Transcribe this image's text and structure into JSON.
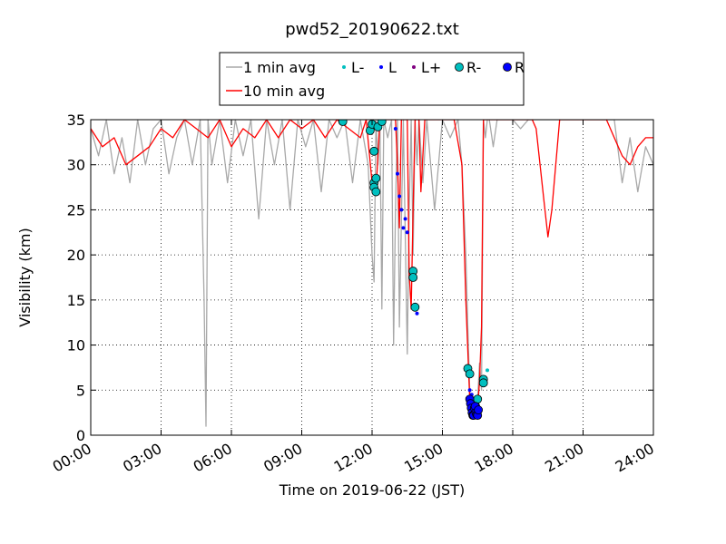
{
  "chart_data": {
    "type": "line",
    "title": "pwd52_20190622.txt",
    "xlabel": "Time on 2019-06-22 (JST)",
    "ylabel": "Visibility (km)",
    "xlim": [
      "00:00",
      "24:00"
    ],
    "ylim": [
      0,
      35
    ],
    "grid": true,
    "legend_placement": "top-center",
    "x_ticks": [
      "00:00",
      "03:00",
      "06:00",
      "09:00",
      "12:00",
      "15:00",
      "18:00",
      "21:00",
      "24:00"
    ],
    "y_ticks": [
      0,
      5,
      10,
      15,
      20,
      25,
      30,
      35
    ],
    "colors": {
      "one_min": "#a8a8a8",
      "ten_min": "#ff0000",
      "l_minus": "#00bfbf",
      "l": "#0000ff",
      "l_plus": "#800080",
      "r_minus": "#00bfbf",
      "r": "#0000ff"
    },
    "legend": [
      {
        "key": "one_min",
        "label": "1 min avg",
        "style": "line"
      },
      {
        "key": "ten_min",
        "label": "10 min avg",
        "style": "line"
      },
      {
        "key": "l_minus",
        "label": "L-",
        "style": "small-dot"
      },
      {
        "key": "l",
        "label": "L",
        "style": "small-dot"
      },
      {
        "key": "l_plus",
        "label": "L+",
        "style": "small-dot"
      },
      {
        "key": "r_minus",
        "label": "R-",
        "style": "big-dot"
      },
      {
        "key": "r",
        "label": "R",
        "style": "big-dot"
      }
    ],
    "series": [
      {
        "key": "one_min",
        "name": "1 min avg",
        "x": [
          "00:00",
          "00:20",
          "00:40",
          "01:00",
          "01:20",
          "01:40",
          "02:00",
          "02:20",
          "02:40",
          "03:00",
          "03:20",
          "03:40",
          "04:00",
          "04:20",
          "04:40",
          "04:50",
          "04:55",
          "05:00",
          "05:10",
          "05:30",
          "05:50",
          "06:10",
          "06:30",
          "06:50",
          "07:10",
          "07:30",
          "07:50",
          "08:10",
          "08:30",
          "08:50",
          "09:10",
          "09:30",
          "09:50",
          "10:10",
          "10:30",
          "10:50",
          "11:10",
          "11:30",
          "11:50",
          "12:00",
          "12:05",
          "12:10",
          "12:15",
          "12:20",
          "12:25",
          "12:30",
          "12:40",
          "12:50",
          "12:55",
          "13:00",
          "13:05",
          "13:10",
          "13:20",
          "13:30",
          "13:35",
          "13:40",
          "13:45",
          "13:50",
          "13:55",
          "14:00",
          "14:10",
          "14:20",
          "14:40",
          "15:00",
          "15:20",
          "15:40",
          "15:50",
          "16:00",
          "16:05",
          "16:10",
          "16:15",
          "16:20",
          "16:25",
          "16:30",
          "16:35",
          "16:40",
          "16:45",
          "16:50",
          "16:55",
          "17:00",
          "17:10",
          "17:20",
          "17:40",
          "18:00",
          "18:20",
          "18:40",
          "19:00",
          "19:20",
          "19:40",
          "20:00",
          "20:20",
          "20:40",
          "21:00",
          "21:20",
          "21:40",
          "22:00",
          "22:20",
          "22:40",
          "23:00",
          "23:20",
          "23:40",
          "24:00"
        ],
        "y": [
          34,
          31,
          35,
          29,
          33,
          28,
          35,
          30,
          34,
          35,
          29,
          33,
          35,
          30,
          35,
          15,
          1,
          35,
          30,
          35,
          28,
          35,
          31,
          35,
          24,
          35,
          30,
          35,
          25,
          35,
          32,
          35,
          27,
          35,
          33,
          35,
          28,
          35,
          30,
          20,
          17,
          35,
          30,
          35,
          14,
          35,
          33,
          35,
          10,
          25,
          35,
          12,
          35,
          9,
          25,
          35,
          20,
          35,
          30,
          35,
          28,
          35,
          25,
          35,
          33,
          35,
          30,
          20,
          12,
          5,
          3,
          2,
          2,
          4,
          8,
          5,
          35,
          33,
          35,
          35,
          32,
          35,
          35,
          35,
          34,
          35,
          35,
          35,
          35,
          35,
          35,
          35,
          35,
          35,
          35,
          35,
          35,
          28,
          33,
          27,
          32,
          30
        ]
      },
      {
        "key": "ten_min",
        "name": "10 min avg",
        "x": [
          "00:00",
          "00:30",
          "01:00",
          "01:30",
          "02:00",
          "02:30",
          "03:00",
          "03:30",
          "04:00",
          "04:30",
          "05:00",
          "05:30",
          "06:00",
          "06:30",
          "07:00",
          "07:30",
          "08:00",
          "08:30",
          "09:00",
          "09:30",
          "10:00",
          "10:30",
          "11:00",
          "11:30",
          "11:45",
          "12:00",
          "12:10",
          "12:20",
          "12:30",
          "12:40",
          "12:50",
          "13:00",
          "13:05",
          "13:10",
          "13:15",
          "13:20",
          "13:30",
          "13:35",
          "13:40",
          "13:45",
          "13:50",
          "14:00",
          "14:05",
          "14:15",
          "14:30",
          "15:00",
          "15:30",
          "15:50",
          "16:00",
          "16:10",
          "16:15",
          "16:20",
          "16:25",
          "16:30",
          "16:35",
          "16:40",
          "16:45",
          "16:50",
          "17:00",
          "17:10",
          "17:30",
          "18:00",
          "18:30",
          "18:50",
          "19:00",
          "19:10",
          "19:20",
          "19:30",
          "19:40",
          "19:50",
          "20:00",
          "20:30",
          "21:00",
          "21:30",
          "22:00",
          "22:20",
          "22:40",
          "23:00",
          "23:20",
          "23:40",
          "24:00"
        ],
        "y": [
          34,
          32,
          33,
          30,
          31,
          32,
          34,
          33,
          35,
          34,
          33,
          35,
          32,
          34,
          33,
          35,
          33,
          35,
          34,
          35,
          33,
          35,
          34,
          33,
          35,
          28,
          27,
          35,
          35,
          35,
          35,
          35,
          30,
          23,
          35,
          35,
          35,
          18,
          14,
          25,
          35,
          35,
          27,
          35,
          35,
          35,
          35,
          30,
          15,
          4,
          3,
          2,
          2,
          3,
          6,
          12,
          35,
          35,
          35,
          35,
          35,
          35,
          35,
          35,
          34,
          30,
          26,
          22,
          25,
          30,
          35,
          35,
          35,
          35,
          35,
          33,
          31,
          30,
          32,
          33,
          33
        ]
      },
      {
        "key": "l_minus",
        "name": "L-",
        "x": [
          "16:55"
        ],
        "y": [
          7.2
        ]
      },
      {
        "key": "l",
        "name": "L",
        "x": [
          "12:00",
          "13:00",
          "13:05",
          "13:10",
          "13:15",
          "13:20",
          "13:25",
          "13:30",
          "13:50",
          "13:55",
          "16:10",
          "16:15",
          "16:20"
        ],
        "y": [
          34,
          34,
          29,
          26.5,
          25,
          23,
          24,
          22.5,
          14.5,
          13.5,
          5,
          4.5,
          4
        ],
        "y_note": ""
      },
      {
        "key": "l_plus",
        "name": "L+",
        "x": [],
        "y": []
      },
      {
        "key": "r_minus",
        "name": "R-",
        "x": [
          "10:45",
          "11:55",
          "12:00",
          "12:05",
          "12:05",
          "12:05",
          "12:10",
          "12:10",
          "12:15",
          "12:25",
          "13:45",
          "13:45",
          "13:50",
          "16:05",
          "16:10",
          "16:15",
          "16:25",
          "16:30",
          "16:45",
          "16:45"
        ],
        "y": [
          34.8,
          33.8,
          34.5,
          31.5,
          28,
          27.5,
          28.5,
          27,
          34.2,
          34.8,
          18.2,
          17.5,
          14.2,
          7.4,
          6.8,
          3.5,
          3.2,
          4,
          6.2,
          5.8
        ]
      },
      {
        "key": "r",
        "name": "R",
        "x": [
          "16:10",
          "16:12",
          "16:14",
          "16:16",
          "16:18",
          "16:20",
          "16:22",
          "16:24",
          "16:26",
          "16:28",
          "16:30",
          "16:32"
        ],
        "y": [
          4,
          3.5,
          3,
          2.5,
          2.2,
          2.2,
          3,
          3.2,
          2.5,
          2.3,
          2.2,
          2.8
        ]
      }
    ]
  }
}
